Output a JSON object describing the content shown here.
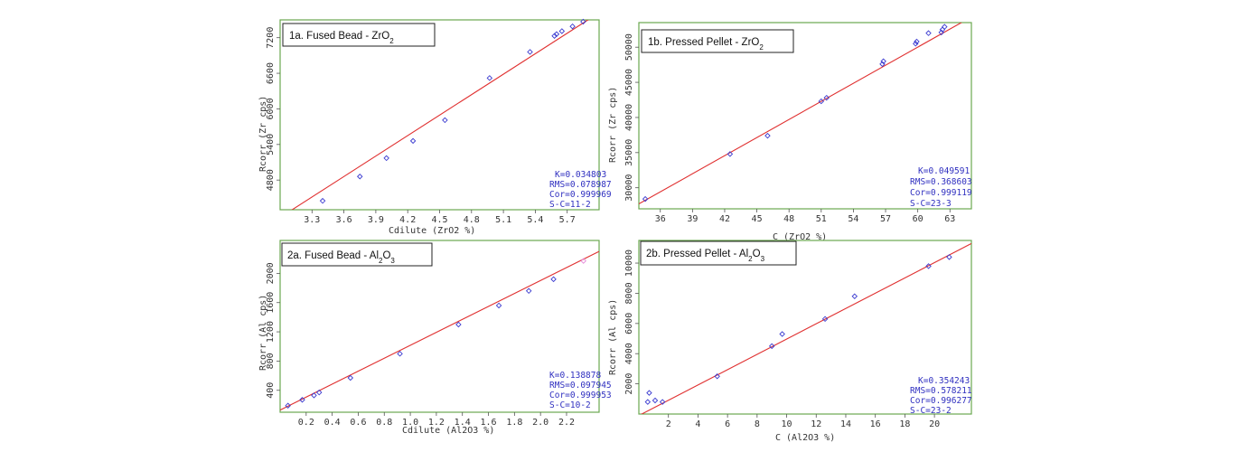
{
  "colors": {
    "frame": "#6aa84f",
    "fit_line": "#e03030",
    "marker": "#3a3ad0",
    "stats_text": "#3030c0",
    "axis_text": "#333333",
    "highlight_marker": "#e58ad8"
  },
  "chart_data": [
    {
      "type": "scatter",
      "title": "1a. Fused Bead - ZrO",
      "title_sub": "2",
      "xlabel": "Cdilute (ZrO2 %)",
      "ylabel": "Rcorr (Zr cps)",
      "xlim": [
        3.0,
        6.0
      ],
      "ylim": [
        4300,
        7500
      ],
      "xticks": [
        "3.3",
        "3.6",
        "3.9",
        "4.2",
        "4.5",
        "4.8",
        "5.1",
        "5.4",
        "5.7"
      ],
      "xtick_values": [
        3.3,
        3.6,
        3.9,
        4.2,
        4.5,
        4.8,
        5.1,
        5.4,
        5.7
      ],
      "yticks": [
        "4800",
        "5400",
        "6000",
        "6600",
        "7200"
      ],
      "ytick_values": [
        4800,
        5400,
        6000,
        6600,
        7200
      ],
      "fit": {
        "x": [
          3.0,
          6.0
        ],
        "y": [
          4170,
          7620
        ]
      },
      "points": {
        "x": [
          3.4,
          3.75,
          4.0,
          4.25,
          4.55,
          4.97,
          5.35,
          5.58,
          5.6,
          5.65,
          5.75,
          5.85
        ],
        "y": [
          4450,
          4860,
          5170,
          5460,
          5810,
          6520,
          6960,
          7230,
          7260,
          7310,
          7390,
          7470
        ]
      },
      "stats": [
        "K=0.034803",
        "RMS=0.078987",
        "Cor=0.999969",
        "S-C=11-2"
      ],
      "grid": false,
      "legend": "none"
    },
    {
      "type": "scatter",
      "title": "1b. Pressed Pellet - ZrO",
      "title_sub": "2",
      "xlabel": "C (ZrO2 %)",
      "ylabel": "Rcorr (Zr cps)",
      "xlim": [
        34,
        65
      ],
      "ylim": [
        27000,
        53500
      ],
      "xticks": [
        "36",
        "39",
        "42",
        "45",
        "48",
        "51",
        "54",
        "57",
        "60",
        "63"
      ],
      "xtick_values": [
        36,
        39,
        42,
        45,
        48,
        51,
        54,
        57,
        60,
        63
      ],
      "yticks": [
        "30000",
        "35000",
        "40000",
        "45000",
        "50000"
      ],
      "ytick_values": [
        30000,
        35000,
        40000,
        45000,
        50000
      ],
      "fit": {
        "x": [
          34,
          65
        ],
        "y": [
          27700,
          54300
        ]
      },
      "points": {
        "x": [
          34.6,
          42.5,
          46.0,
          51.0,
          51.5,
          56.7,
          56.8,
          59.8,
          59.9,
          61.0,
          62.2,
          62.3,
          62.5
        ],
        "y": [
          28400,
          34800,
          37400,
          42300,
          42800,
          47600,
          48000,
          50500,
          50800,
          52000,
          52100,
          52500,
          52900
        ]
      },
      "stats": [
        "K=0.049591",
        "RMS=0.368603",
        "Cor=0.999119",
        "S-C=23-3"
      ],
      "grid": false,
      "legend": "none"
    },
    {
      "type": "scatter",
      "title": "2a. Fused Bead - Al",
      "title_sub": "2",
      "title_tail": "O",
      "title_sub2": "3",
      "xlabel": "Cdilute (Al2O3 %)",
      "ylabel": "Rcorr (Al cps)",
      "xlim": [
        0.0,
        2.45
      ],
      "ylim": [
        100,
        2450
      ],
      "xticks": [
        "0.2",
        "0.4",
        "0.6",
        "0.8",
        "1.0",
        "1.2",
        "1.4",
        "1.6",
        "1.8",
        "2.0",
        "2.2"
      ],
      "xtick_values": [
        0.2,
        0.4,
        0.6,
        0.8,
        1.0,
        1.2,
        1.4,
        1.6,
        1.8,
        2.0,
        2.2
      ],
      "yticks": [
        "400",
        "800",
        "1200",
        "1600",
        "2000"
      ],
      "ytick_values": [
        400,
        800,
        1200,
        1600,
        2000
      ],
      "fit": {
        "x": [
          0.0,
          2.45
        ],
        "y": [
          130,
          2300
        ]
      },
      "points": {
        "x": [
          0.06,
          0.17,
          0.26,
          0.3,
          0.54,
          0.92,
          1.37,
          1.68,
          1.91,
          2.1
        ],
        "y": [
          190,
          270,
          330,
          370,
          570,
          900,
          1300,
          1560,
          1760,
          1920
        ]
      },
      "highlight_point": {
        "x": 2.33,
        "y": 2170
      },
      "stats": [
        "K=0.138878",
        "RMS=0.097945",
        "Cor=0.999953",
        "S-C=10-2"
      ],
      "grid": false,
      "legend": "none"
    },
    {
      "type": "scatter",
      "title": "2b. Pressed Pellet - Al",
      "title_sub": "2",
      "title_tail": "O",
      "title_sub2": "3",
      "xlabel": "C (Al2O3 %)",
      "ylabel": "Rcorr (Al cps)",
      "xlim": [
        0.0,
        22.5
      ],
      "ylim": [
        0,
        11500
      ],
      "xticks": [
        "2",
        "4",
        "6",
        "8",
        "10",
        "12",
        "14",
        "16",
        "18",
        "20"
      ],
      "xtick_values": [
        2,
        4,
        6,
        8,
        10,
        12,
        14,
        16,
        18,
        20
      ],
      "yticks": [
        "2000",
        "4000",
        "6000",
        "8000",
        "10000"
      ],
      "ytick_values": [
        2000,
        4000,
        6000,
        8000,
        10000
      ],
      "fit": {
        "x": [
          0.0,
          22.5
        ],
        "y": [
          -100,
          11300
        ]
      },
      "points": {
        "x": [
          0.6,
          0.7,
          1.1,
          1.6,
          5.3,
          9.0,
          9.7,
          12.6,
          14.6,
          19.6,
          21.0
        ],
        "y": [
          800,
          1400,
          900,
          800,
          2500,
          4500,
          5300,
          6300,
          7800,
          9800,
          10400
        ]
      },
      "stats": [
        "K=0.354243",
        "RMS=0.578211",
        "Cor=0.996277",
        "S-C=23-2"
      ],
      "grid": false,
      "legend": "none"
    }
  ]
}
